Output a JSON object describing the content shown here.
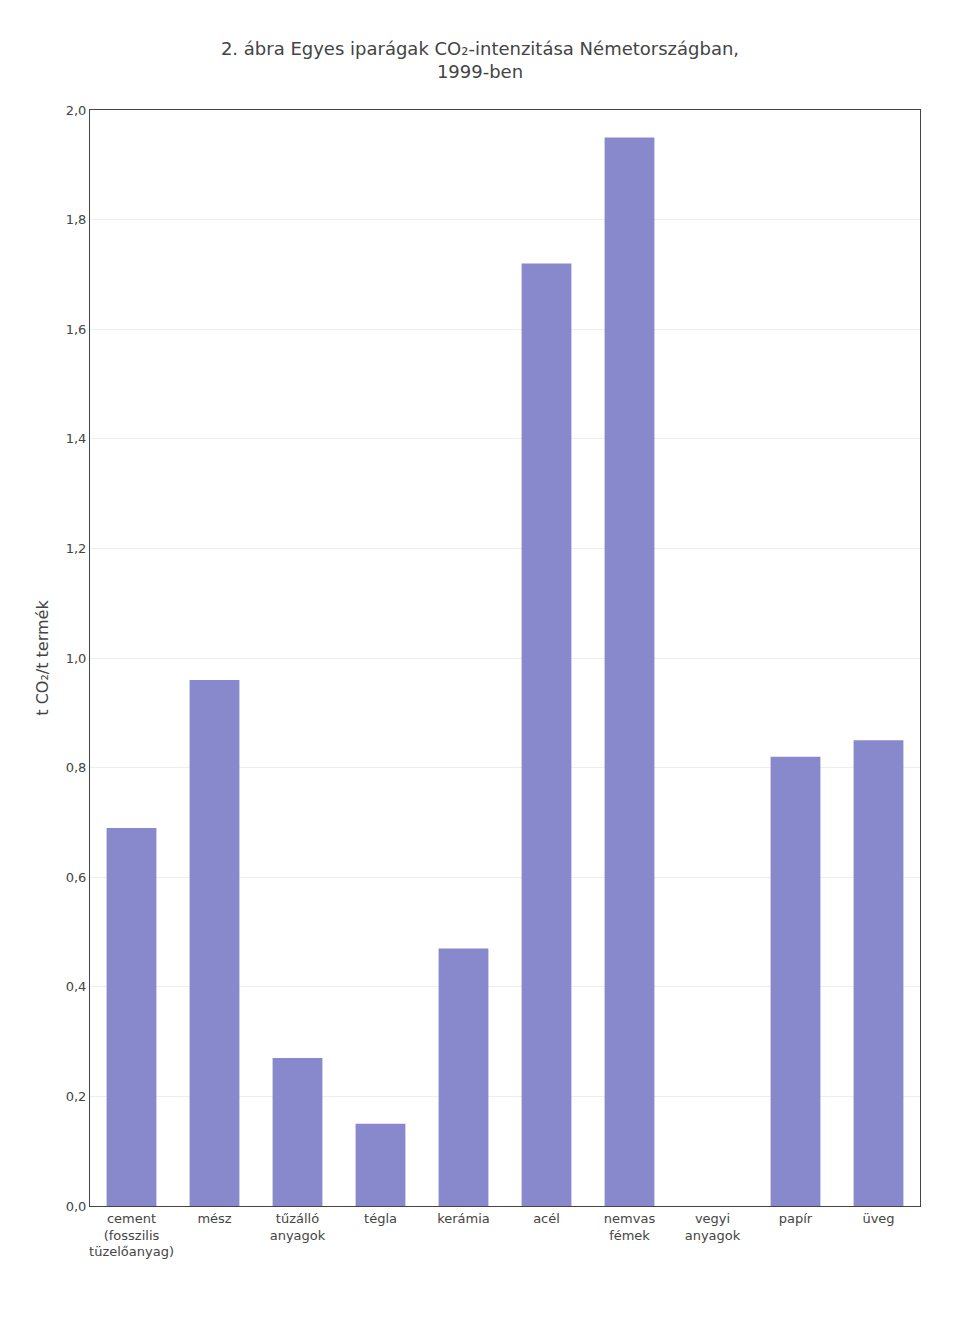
{
  "chart_data": {
    "type": "bar",
    "title": "2. ábra Egyes iparágak CO₂-intenzitása Németországban,\n1999-ben",
    "ylabel": "t CO₂/t termék",
    "categories": [
      "cement\n(fosszilis\ntüzelőanyag)",
      "mész",
      "tűzálló\nanyagok",
      "tégla",
      "kerámia",
      "acél",
      "nemvas\nfémek",
      "vegyi\nanyagok",
      "papír",
      "üveg"
    ],
    "values": [
      0.69,
      0.96,
      0.27,
      0.15,
      0.47,
      1.72,
      1.95,
      0.0,
      0.82,
      0.85
    ],
    "color": "#8888cc",
    "ylim": [
      0.0,
      2.0
    ],
    "yticks": [
      {
        "value": 0.0,
        "label": "0,0"
      },
      {
        "value": 0.2,
        "label": "0,2"
      },
      {
        "value": 0.4,
        "label": "0,4"
      },
      {
        "value": 0.6,
        "label": "0,6"
      },
      {
        "value": 0.8,
        "label": "0,8"
      },
      {
        "value": 1.0,
        "label": "1,0"
      },
      {
        "value": 1.2,
        "label": "1,2"
      },
      {
        "value": 1.4,
        "label": "1,4"
      },
      {
        "value": 1.6,
        "label": "1,6"
      },
      {
        "value": 1.8,
        "label": "1,8"
      },
      {
        "value": 2.0,
        "label": "2,0"
      }
    ],
    "grid": true
  }
}
